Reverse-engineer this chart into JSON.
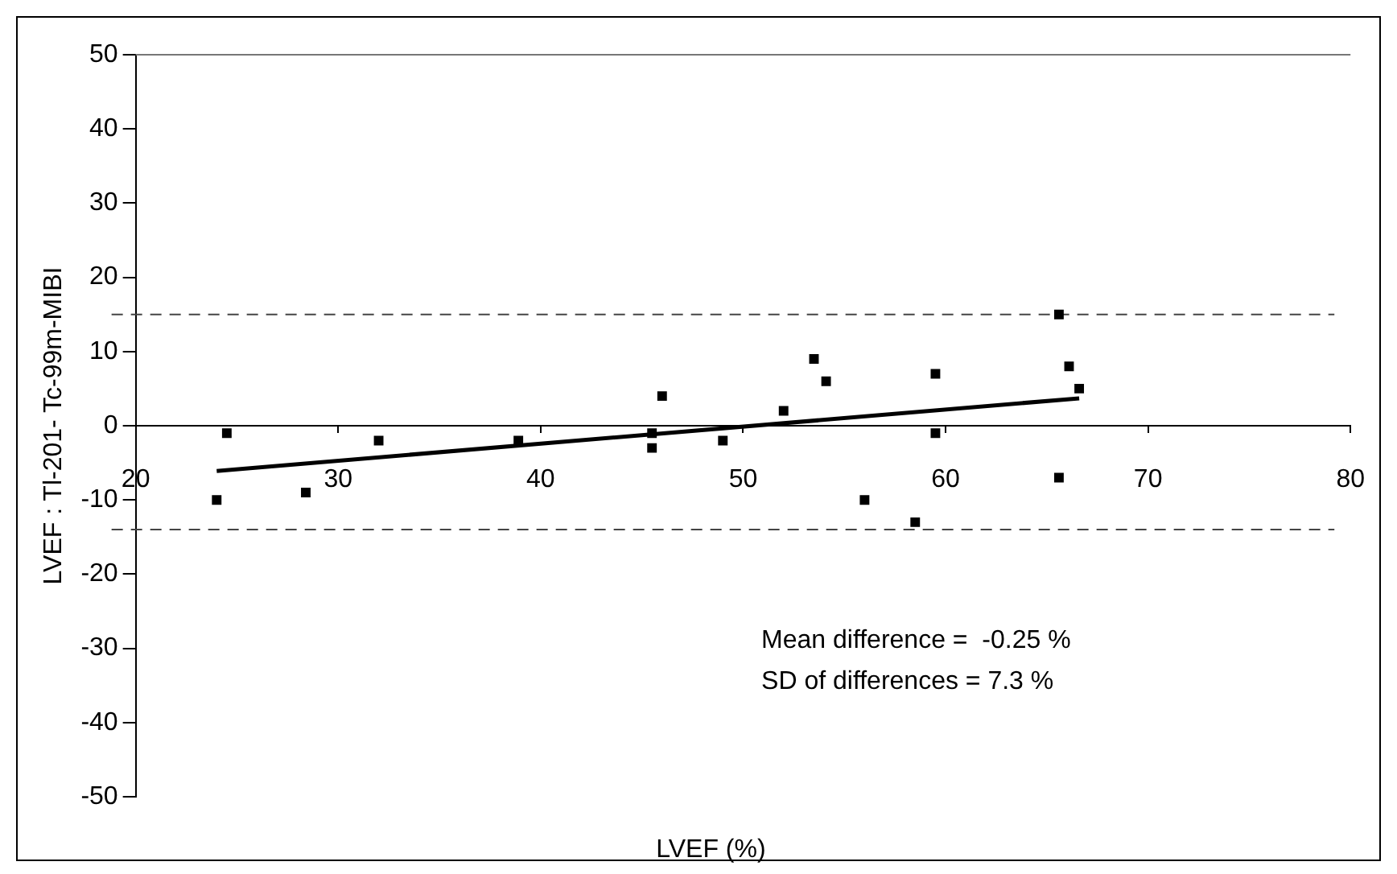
{
  "chart_data": {
    "type": "scatter",
    "xlabel": "LVEF (%)",
    "ylabel": "LVEF : Tl-201- Tc-99m-MIBI",
    "xlim": [
      20,
      80
    ],
    "xticks": [
      20,
      30,
      40,
      50,
      60,
      70,
      80
    ],
    "ylim": [
      -50,
      50
    ],
    "yticks": [
      -50,
      -40,
      -30,
      -20,
      -10,
      0,
      10,
      20,
      30,
      40,
      50
    ],
    "grid": false,
    "legend": false,
    "marker": "square",
    "series": [
      {
        "type": "scatter",
        "color": "#000000",
        "x": [
          24,
          24.5,
          28.4,
          32,
          38.9,
          45.5,
          45.5,
          46,
          49,
          52,
          53.5,
          54.1,
          56,
          58.5,
          59.5,
          59.5,
          65.6,
          65.6,
          66.1,
          66.6
        ],
        "values": [
          -10,
          -1,
          -9,
          -2,
          -2,
          -1,
          -3,
          4,
          -2,
          2,
          9,
          6,
          -10,
          -13,
          7,
          -1,
          15,
          -7,
          8,
          5
        ]
      },
      {
        "type": "line",
        "color": "#000000",
        "marker": "none",
        "line_style": "solid",
        "x": [
          24,
          66.6
        ],
        "values": [
          -6.1,
          3.7
        ]
      }
    ],
    "ref_lines": [
      {
        "axis": "y",
        "value": 15,
        "color": "#444444",
        "line_style": "dashed"
      },
      {
        "axis": "y",
        "value": -14,
        "color": "#444444",
        "line_style": "dashed"
      }
    ],
    "annotations": [
      "Mean difference =  -0.25 %",
      "SD of differences = 7.3 %"
    ]
  }
}
